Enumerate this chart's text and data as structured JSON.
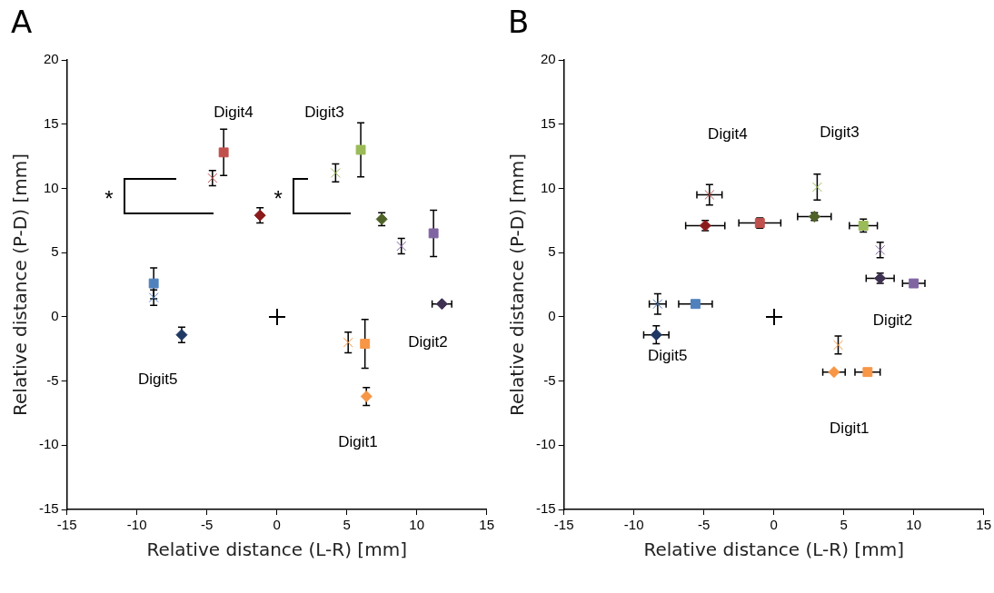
{
  "chart_data": [
    {
      "type": "scatter",
      "title": "A",
      "xlabel": "Relative distance (L-R) [mm]",
      "ylabel": "Relative distance (P-D) [mm]",
      "xlim": [
        -15,
        15
      ],
      "xticks": [
        -15,
        -10,
        -5,
        0,
        5,
        10,
        15
      ],
      "ylim": [
        -15,
        20
      ],
      "yticks": [
        -15,
        -10,
        -5,
        0,
        5,
        10,
        15,
        20
      ],
      "grid": false,
      "legend": false,
      "annotations": [
        "Digit4",
        "Digit3",
        "Digit2",
        "Digit5",
        "Digit1",
        "*",
        "*"
      ],
      "series": [
        {
          "marker": "square",
          "color": "#c0504d",
          "x": [
            -3.8
          ],
          "values": [
            12.8
          ],
          "errors": [
            1.8
          ]
        },
        {
          "marker": "cross",
          "color": "#c0504d",
          "x": [
            -4.6
          ],
          "values": [
            10.8
          ],
          "errors": [
            0.6
          ]
        },
        {
          "marker": "diamond",
          "color": "#8b1a1a",
          "x": [
            -1.2
          ],
          "values": [
            7.9
          ],
          "errors": [
            0.6
          ]
        },
        {
          "marker": "square",
          "color": "#9bbb59",
          "x": [
            6.0
          ],
          "values": [
            13.0
          ],
          "errors": [
            2.1
          ]
        },
        {
          "marker": "cross",
          "color": "#9bbb59",
          "x": [
            4.2
          ],
          "values": [
            11.2
          ],
          "errors": [
            0.7
          ]
        },
        {
          "marker": "diamond",
          "color": "#4f6228",
          "x": [
            7.5
          ],
          "values": [
            7.6
          ],
          "errors": [
            0.5
          ]
        },
        {
          "marker": "square",
          "color": "#8064a2",
          "x": [
            11.2
          ],
          "values": [
            6.5
          ],
          "errors": [
            1.8
          ]
        },
        {
          "marker": "cross",
          "color": "#8064a2",
          "x": [
            8.9
          ],
          "values": [
            5.5
          ],
          "errors": [
            0.6
          ]
        },
        {
          "marker": "diamond",
          "color": "#3f3151",
          "x": [
            11.8
          ],
          "values": [
            1.0
          ],
          "xerrors": [
            0.7
          ]
        },
        {
          "marker": "square",
          "color": "#f79646",
          "x": [
            6.3
          ],
          "values": [
            -2.1
          ],
          "errors": [
            1.9
          ]
        },
        {
          "marker": "cross",
          "color": "#f79646",
          "x": [
            5.1
          ],
          "values": [
            -2.0
          ],
          "errors": [
            0.8
          ]
        },
        {
          "marker": "diamond",
          "color": "#f79646",
          "x": [
            6.4
          ],
          "values": [
            -6.2
          ],
          "errors": [
            0.7
          ]
        },
        {
          "marker": "square",
          "color": "#4f81bd",
          "x": [
            -8.8
          ],
          "values": [
            2.6
          ],
          "errors": [
            1.2
          ]
        },
        {
          "marker": "cross",
          "color": "#4f81bd",
          "x": [
            -8.8
          ],
          "values": [
            1.5
          ],
          "errors": [
            0.6
          ]
        },
        {
          "marker": "diamond",
          "color": "#1f3864",
          "x": [
            -6.8
          ],
          "values": [
            -1.4
          ],
          "errors": [
            0.6
          ]
        }
      ]
    },
    {
      "type": "scatter",
      "title": "B",
      "xlabel": "Relative distance (L-R) [mm]",
      "ylabel": "Relative distance (P-D) [mm]",
      "xlim": [
        -15,
        15
      ],
      "xticks": [
        -15,
        -10,
        -5,
        0,
        5,
        10,
        15
      ],
      "ylim": [
        -15,
        20
      ],
      "yticks": [
        -15,
        -10,
        -5,
        0,
        5,
        10,
        15,
        20
      ],
      "grid": false,
      "legend": false,
      "annotations": [
        "Digit4",
        "Digit3",
        "Digit2",
        "Digit5",
        "Digit1"
      ],
      "series": [
        {
          "marker": "square",
          "color": "#c0504d",
          "x": [
            -1.0
          ],
          "values": [
            7.3
          ],
          "errors": [
            0.4
          ],
          "xerrors": [
            1.5
          ]
        },
        {
          "marker": "cross",
          "color": "#c0504d",
          "x": [
            -4.6
          ],
          "values": [
            9.5
          ],
          "errors": [
            0.8
          ],
          "xerrors": [
            0.9
          ]
        },
        {
          "marker": "diamond",
          "color": "#8b1a1a",
          "x": [
            -4.9
          ],
          "values": [
            7.1
          ],
          "errors": [
            0.4
          ],
          "xerrors": [
            1.4
          ]
        },
        {
          "marker": "square",
          "color": "#9bbb59",
          "x": [
            6.4
          ],
          "values": [
            7.1
          ],
          "errors": [
            0.5
          ],
          "xerrors": [
            1.0
          ]
        },
        {
          "marker": "cross",
          "color": "#9bbb59",
          "x": [
            3.1
          ],
          "values": [
            10.1
          ],
          "errors": [
            1.0
          ]
        },
        {
          "marker": "diamond",
          "color": "#4f6228",
          "x": [
            2.9
          ],
          "values": [
            7.8
          ],
          "errors": [
            0.3
          ],
          "xerrors": [
            1.2
          ]
        },
        {
          "marker": "square",
          "color": "#8064a2",
          "x": [
            10.0
          ],
          "values": [
            2.6
          ],
          "xerrors": [
            0.8
          ]
        },
        {
          "marker": "cross",
          "color": "#8064a2",
          "x": [
            7.6
          ],
          "values": [
            5.2
          ],
          "errors": [
            0.6
          ]
        },
        {
          "marker": "diamond",
          "color": "#3f3151",
          "x": [
            7.6
          ],
          "values": [
            3.0
          ],
          "errors": [
            0.4
          ],
          "xerrors": [
            1.0
          ]
        },
        {
          "marker": "square",
          "color": "#f79646",
          "x": [
            6.7
          ],
          "values": [
            -4.3
          ],
          "xerrors": [
            0.9
          ]
        },
        {
          "marker": "cross",
          "color": "#f79646",
          "x": [
            4.6
          ],
          "values": [
            -2.2
          ],
          "errors": [
            0.7
          ]
        },
        {
          "marker": "diamond",
          "color": "#f79646",
          "x": [
            4.3
          ],
          "values": [
            -4.3
          ],
          "xerrors": [
            0.8
          ]
        },
        {
          "marker": "square",
          "color": "#4f81bd",
          "x": [
            -5.6
          ],
          "values": [
            1.0
          ],
          "xerrors": [
            1.2
          ]
        },
        {
          "marker": "cross",
          "color": "#4f81bd",
          "x": [
            -8.3
          ],
          "values": [
            1.0
          ],
          "errors": [
            0.8
          ],
          "xerrors": [
            0.6
          ]
        },
        {
          "marker": "diamond",
          "color": "#1f3864",
          "x": [
            -8.4
          ],
          "values": [
            -1.4
          ],
          "errors": [
            0.7
          ],
          "xerrors": [
            0.9
          ]
        }
      ]
    }
  ]
}
